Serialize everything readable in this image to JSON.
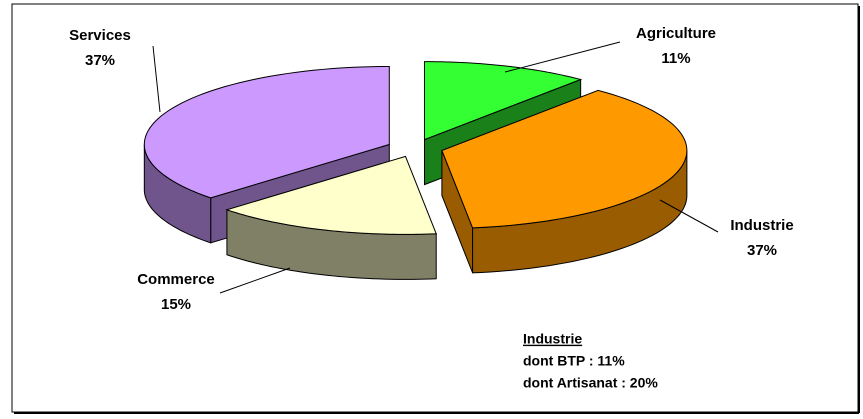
{
  "chart_data": {
    "type": "pie3d",
    "categories": [
      "Agriculture",
      "Industrie",
      "Commerce",
      "Services"
    ],
    "values": [
      11,
      37,
      15,
      37
    ],
    "value_labels": [
      "11%",
      "37%",
      "15%",
      "37%"
    ],
    "colors": [
      "#33ff33",
      "#ff9900",
      "#ffffcc",
      "#cc99ff"
    ],
    "annotations": [
      "Industrie",
      "dont BTP : 11%",
      "dont Artisanat : 20%"
    ]
  }
}
